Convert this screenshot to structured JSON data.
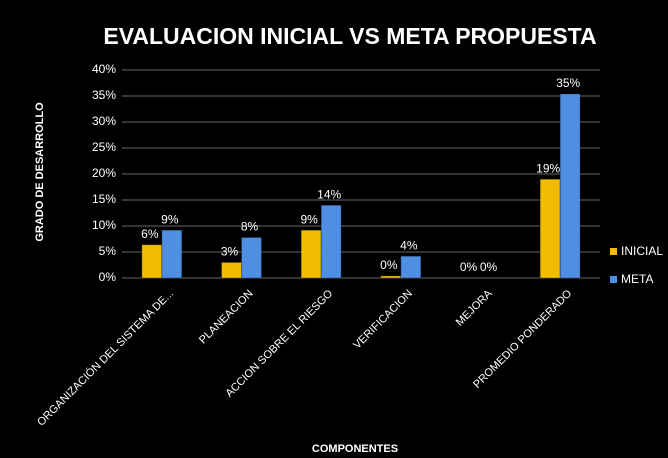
{
  "chart_data": {
    "type": "bar",
    "title": "EVALUACION INICIAL VS META PROPUESTA",
    "x_label": "COMPONENTES",
    "y_label": "GRADO DE DESARROLLO",
    "categories": [
      "ORGANIZACIÓN DEL SISTEMA DE...",
      "PLANEACION",
      "ACCION SOBRE EL RIESGO",
      "VERIFICACION",
      "MEJORA",
      "PROMEDIO PONDERADO"
    ],
    "series": [
      {
        "name": "INICIAL",
        "color": "#f2bd00",
        "values": [
          6.4,
          3,
          9.2,
          0.4,
          0,
          19
        ],
        "value_labels": [
          "6%",
          "3%",
          "9%",
          "0%",
          "0%",
          "19%"
        ]
      },
      {
        "name": "META",
        "color": "#4e8fe3",
        "values": [
          9.2,
          7.8,
          14,
          4.2,
          0,
          35.4
        ],
        "value_labels": [
          "9%",
          "8%",
          "14%",
          "4%",
          "0%",
          "35%"
        ]
      }
    ],
    "ylim": [
      0,
      40
    ],
    "yticks": [
      {
        "value": 0,
        "label": "0%"
      },
      {
        "value": 5,
        "label": "5%"
      },
      {
        "value": 10,
        "label": "10%"
      },
      {
        "value": 15,
        "label": "15%"
      },
      {
        "value": 20,
        "label": "20%"
      },
      {
        "value": 25,
        "label": "25%"
      },
      {
        "value": 30,
        "label": "30%"
      },
      {
        "value": 35,
        "label": "35%"
      },
      {
        "value": 40,
        "label": "40%"
      }
    ],
    "grid": true,
    "legend": "right"
  }
}
